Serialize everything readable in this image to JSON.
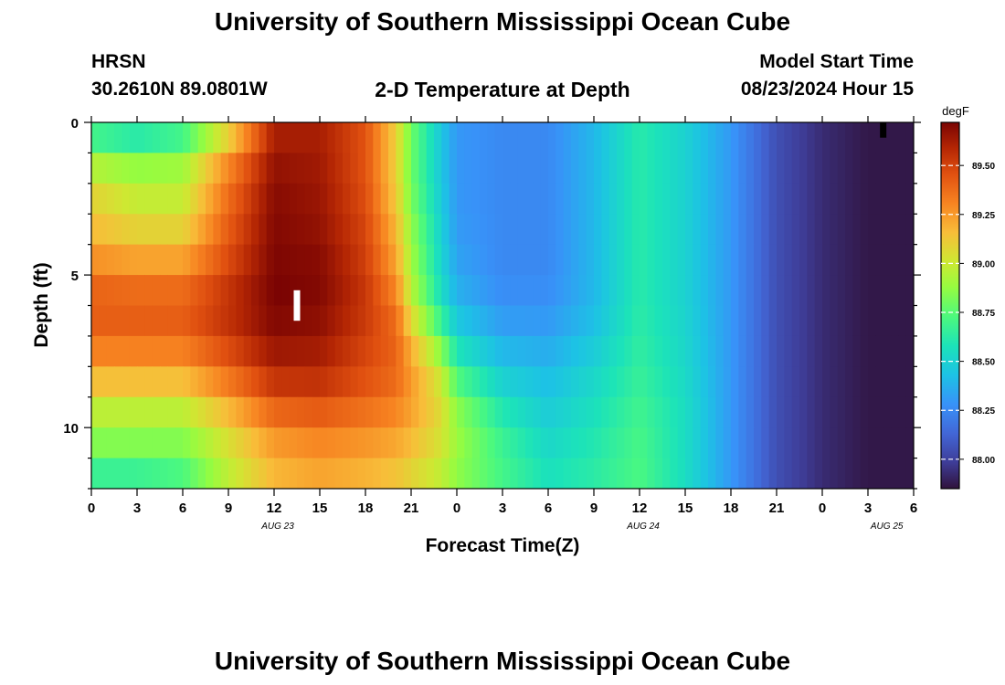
{
  "page": {
    "title": "University of Southern Mississippi Ocean Cube",
    "footer_title": "University of Southern Mississippi Ocean Cube"
  },
  "header": {
    "station": "HRSN",
    "coordinates": "30.2610N  89.0801W",
    "plot_title": "2-D Temperature at Depth",
    "model_label": "Model Start Time",
    "model_time": "08/23/2024 Hour 15"
  },
  "chart_data": {
    "type": "heatmap",
    "title": "2-D Temperature at Depth",
    "xlabel": "Forecast Time(Z)",
    "ylabel": "Depth (ft)",
    "x_tick_labels": [
      "0",
      "3",
      "6",
      "9",
      "12",
      "15",
      "18",
      "21",
      "0",
      "3",
      "6",
      "9",
      "12",
      "15",
      "18",
      "21",
      "0",
      "3",
      "6"
    ],
    "x_range_hours": [
      0,
      54
    ],
    "date_labels": [
      {
        "label": "AUG 23",
        "hour": 12
      },
      {
        "label": "AUG 24",
        "hour": 36
      },
      {
        "label": "AUG 25",
        "hour": 52
      }
    ],
    "y_tick_labels": [
      "0",
      "5",
      "10"
    ],
    "ylim": [
      0,
      12
    ],
    "y_inverted": true,
    "colorbar": {
      "unit": "degF",
      "ticks": [
        "89.50",
        "89.25",
        "89.00",
        "88.75",
        "88.50",
        "88.25",
        "88.00"
      ],
      "range": [
        87.85,
        89.72
      ]
    },
    "depths_ft": [
      0,
      0.5,
      1,
      2,
      3,
      4,
      5,
      6,
      7,
      8,
      9,
      10,
      11,
      12
    ],
    "time_hours": [
      0,
      3,
      6,
      9,
      12,
      15,
      18,
      20,
      21,
      23,
      24,
      27,
      30,
      33,
      36,
      39,
      42,
      45,
      48,
      51,
      54
    ],
    "values_degF": [
      [
        88.55,
        88.5,
        88.55,
        89.0,
        89.62,
        89.62,
        89.45,
        89.1,
        88.8,
        88.45,
        88.3,
        88.25,
        88.25,
        88.4,
        88.62,
        88.5,
        88.3,
        88.05,
        87.93,
        87.87,
        87.87
      ],
      [
        88.7,
        88.62,
        88.7,
        89.1,
        89.62,
        89.62,
        89.45,
        89.1,
        88.8,
        88.45,
        88.3,
        88.25,
        88.25,
        88.4,
        88.62,
        88.5,
        88.3,
        88.05,
        87.93,
        87.87,
        87.87
      ],
      [
        88.85,
        88.8,
        88.85,
        89.25,
        89.65,
        89.62,
        89.45,
        89.1,
        88.8,
        88.45,
        88.3,
        88.25,
        88.25,
        88.4,
        88.62,
        88.5,
        88.3,
        88.05,
        87.93,
        87.87,
        87.87
      ],
      [
        89.05,
        88.95,
        88.95,
        89.35,
        89.68,
        89.65,
        89.45,
        89.1,
        88.8,
        88.45,
        88.3,
        88.25,
        88.25,
        88.4,
        88.62,
        88.5,
        88.3,
        88.05,
        87.93,
        87.87,
        87.87
      ],
      [
        89.12,
        89.02,
        89.02,
        89.4,
        89.7,
        89.65,
        89.48,
        89.15,
        88.85,
        88.48,
        88.3,
        88.25,
        88.25,
        88.4,
        88.62,
        88.5,
        88.3,
        88.05,
        87.93,
        87.87,
        87.87
      ],
      [
        89.2,
        89.15,
        89.15,
        89.45,
        89.7,
        89.68,
        89.5,
        89.2,
        88.9,
        88.5,
        88.32,
        88.25,
        88.25,
        88.4,
        88.62,
        88.5,
        88.3,
        88.05,
        87.93,
        87.87,
        87.87
      ],
      [
        89.35,
        89.3,
        89.3,
        89.5,
        89.72,
        89.7,
        89.52,
        89.25,
        88.92,
        88.52,
        88.35,
        88.25,
        88.25,
        88.4,
        88.62,
        88.5,
        88.3,
        88.05,
        87.93,
        87.87,
        87.87
      ],
      [
        89.45,
        89.45,
        89.45,
        89.58,
        89.72,
        89.7,
        89.55,
        89.35,
        89.0,
        88.58,
        88.4,
        88.28,
        88.28,
        88.4,
        88.62,
        88.5,
        88.3,
        88.05,
        87.93,
        87.87,
        87.87
      ],
      [
        89.38,
        89.38,
        89.38,
        89.52,
        89.68,
        89.65,
        89.5,
        89.4,
        89.15,
        88.75,
        88.52,
        88.35,
        88.33,
        88.45,
        88.64,
        88.52,
        88.3,
        88.05,
        87.93,
        87.87,
        87.87
      ],
      [
        89.25,
        89.25,
        89.25,
        89.42,
        89.6,
        89.6,
        89.48,
        89.4,
        89.25,
        88.95,
        88.65,
        88.45,
        88.4,
        88.5,
        88.65,
        88.52,
        88.3,
        88.05,
        87.93,
        87.87,
        87.87
      ],
      [
        89.05,
        89.05,
        89.05,
        89.25,
        89.48,
        89.5,
        89.42,
        89.35,
        89.25,
        89.05,
        88.82,
        88.55,
        88.45,
        88.55,
        88.68,
        88.55,
        88.3,
        88.05,
        87.93,
        87.87,
        87.87
      ],
      [
        88.88,
        88.88,
        88.88,
        89.08,
        89.3,
        89.35,
        89.3,
        89.25,
        89.2,
        89.05,
        88.9,
        88.65,
        88.5,
        88.58,
        88.7,
        88.55,
        88.3,
        88.05,
        87.93,
        87.87,
        87.87
      ],
      [
        88.8,
        88.8,
        88.8,
        89.0,
        89.2,
        89.25,
        89.22,
        89.18,
        89.12,
        89.0,
        88.88,
        88.7,
        88.55,
        88.62,
        88.72,
        88.55,
        88.3,
        88.05,
        87.93,
        87.87,
        87.87
      ],
      [
        88.55,
        88.55,
        88.65,
        88.95,
        89.15,
        89.2,
        89.15,
        89.1,
        89.05,
        88.95,
        88.85,
        88.7,
        88.58,
        88.63,
        88.72,
        88.55,
        88.3,
        88.05,
        87.93,
        87.87,
        87.87
      ]
    ],
    "markers": [
      {
        "type": "bar",
        "color": "#ffffff",
        "hour": 13.5,
        "depth_start": 5.5,
        "depth_end": 6.5
      },
      {
        "type": "bar",
        "color": "#000000",
        "hour": 52,
        "depth_start": 0,
        "depth_end": 0.5
      }
    ]
  }
}
